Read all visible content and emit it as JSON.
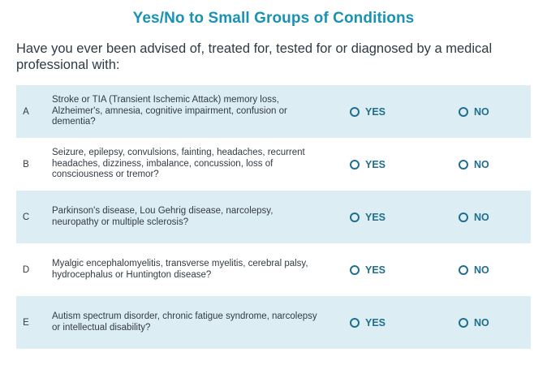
{
  "title": "Yes/No to Small Groups of Conditions",
  "intro": "Have you ever been advised of, treated for, tested for or diagnosed by a medical professional with:",
  "options": {
    "yes_label": "YES",
    "no_label": "NO"
  },
  "questions": [
    {
      "letter": "A",
      "text": "Stroke or TIA (Transient Ischemic Attack) memory loss, Alzheimer's, amnesia, cognitive impairment, confusion or dementia?"
    },
    {
      "letter": "B",
      "text": "Seizure, epilepsy, convulsions, fainting, headaches, recurrent headaches, dizziness, imbalance, concussion, loss of consciousness or tremor?"
    },
    {
      "letter": "C",
      "text": "Parkinson's disease, Lou Gehrig disease, narcolepsy, neuropathy or multiple sclerosis?"
    },
    {
      "letter": "D",
      "text": "Myalgic encephalomyelitis, transverse myelitis, cerebral palsy, hydrocephalus or Huntington disease?"
    },
    {
      "letter": "E",
      "text": "Autism spectrum disorder, chronic fatigue syndrome, narcolepsy or intellectual disability?"
    }
  ],
  "colors": {
    "title": "#1a93b3",
    "accent": "#1f6e8c",
    "row_shade": "#dcedf4"
  }
}
